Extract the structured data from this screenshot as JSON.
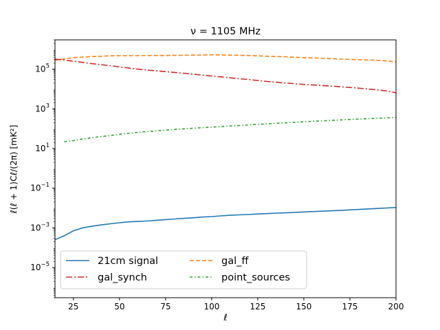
{
  "chart_data": {
    "type": "line",
    "title": "ν = 1105 MHz",
    "xlabel": "ℓ",
    "ylabel": "ℓ(ℓ + 1)Cℓ/(2π) [mK²]",
    "xlim": [
      15,
      200
    ],
    "ylim": [
      3e-07,
      3000000.0
    ],
    "yscale": "log",
    "x_ticks": [
      25,
      50,
      75,
      100,
      125,
      150,
      175,
      200
    ],
    "x_tick_labels": [
      "25",
      "50",
      "75",
      "100",
      "125",
      "150",
      "175",
      "200"
    ],
    "y_ticks": [
      1e-05,
      0.001,
      0.1,
      10.0,
      1000.0,
      100000.0
    ],
    "y_tick_labels": [
      {
        "base": "10",
        "exp": "−5"
      },
      {
        "base": "10",
        "exp": "−3"
      },
      {
        "base": "10",
        "exp": "−1"
      },
      {
        "base": "10",
        "exp": "1"
      },
      {
        "base": "10",
        "exp": "3"
      },
      {
        "base": "10",
        "exp": "5"
      }
    ],
    "grid": false,
    "legend": {
      "placement": "lower-left",
      "columns": 2
    },
    "x": [
      15,
      20,
      25,
      30,
      35,
      40,
      45,
      50,
      55,
      60,
      65,
      70,
      75,
      80,
      85,
      90,
      95,
      100,
      105,
      110,
      115,
      120,
      125,
      130,
      135,
      140,
      145,
      150,
      155,
      160,
      165,
      170,
      175,
      180,
      185,
      190,
      195,
      200
    ],
    "series": [
      {
        "name": "21cm signal",
        "color": "#1f77b4",
        "dash": "solid",
        "values": [
          0.00025,
          0.0004,
          0.0007,
          0.001,
          0.0012,
          0.0014,
          0.0016,
          0.0018,
          0.002,
          0.0021,
          0.0022,
          0.0024,
          0.0026,
          0.0028,
          0.003,
          0.0032,
          0.0035,
          0.0037,
          0.004,
          0.0043,
          0.0045,
          0.0047,
          0.005,
          0.0052,
          0.0055,
          0.0057,
          0.006,
          0.0063,
          0.0066,
          0.0069,
          0.0072,
          0.0075,
          0.008,
          0.0085,
          0.009,
          0.0095,
          0.01,
          0.0105
        ]
      },
      {
        "name": "gal_ff",
        "color": "#ff7f0e",
        "dash": "dashed",
        "values": [
          280000,
          330000,
          380000,
          410000,
          430000,
          450000,
          470000,
          480000,
          480000,
          480000,
          490000,
          490000,
          490000,
          500000,
          500000,
          510000,
          520000,
          530000,
          520000,
          510000,
          500000,
          490000,
          470000,
          450000,
          430000,
          420000,
          400000,
          380000,
          370000,
          350000,
          340000,
          320000,
          310000,
          300000,
          290000,
          280000,
          260000,
          230000
        ]
      },
      {
        "name": "gal_synch",
        "color": "#d62728",
        "dash": "dashdot",
        "values": [
          320000,
          290000,
          250000,
          220000,
          190000,
          170000,
          150000,
          130000,
          115000,
          100000,
          90000,
          82000,
          75000,
          68000,
          62000,
          56000,
          50000,
          45000,
          41000,
          37000,
          33000,
          30000,
          27000,
          24000,
          22000,
          20000,
          18500,
          17000,
          16000,
          15000,
          14000,
          13000,
          12000,
          11000,
          10000,
          9000,
          8000,
          6500
        ]
      },
      {
        "name": "point_sources",
        "color": "#2ca02c",
        "dash": "densely-dashdot",
        "values": [
          null,
          22,
          25,
          30,
          35,
          40,
          45,
          52,
          58,
          65,
          72,
          78,
          85,
          92,
          98,
          105,
          112,
          120,
          128,
          136,
          145,
          155,
          165,
          175,
          186,
          198,
          210,
          222,
          235,
          248,
          262,
          276,
          290,
          305,
          320,
          335,
          350,
          370
        ]
      }
    ]
  }
}
